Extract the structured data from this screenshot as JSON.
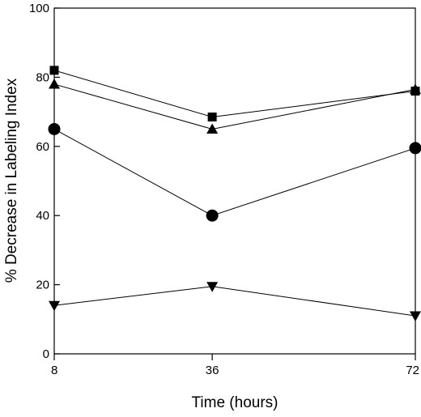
{
  "chart_data": {
    "type": "line",
    "title": "",
    "xlabel": "Time (hours)",
    "ylabel": "% Decrease in Labeling Index",
    "x": [
      8,
      36,
      72
    ],
    "x_tick_labels": [
      "8",
      "36",
      "72"
    ],
    "y_ticks": [
      0,
      20,
      40,
      60,
      80,
      100
    ],
    "y_tick_labels": [
      "0",
      "20",
      "40",
      "60",
      "80",
      "100"
    ],
    "ylim": [
      0,
      100
    ],
    "grid": false,
    "legend": "none",
    "series": [
      {
        "marker": "square",
        "values": [
          82,
          68.5,
          76
        ]
      },
      {
        "marker": "triangle-up",
        "values": [
          78,
          65,
          76.5
        ]
      },
      {
        "marker": "circle",
        "values": [
          65,
          40,
          59.5
        ]
      },
      {
        "marker": "triangle-down",
        "values": [
          14,
          19.5,
          11
        ]
      }
    ],
    "colors": {
      "line": "#000000",
      "marker": "#000000"
    }
  }
}
